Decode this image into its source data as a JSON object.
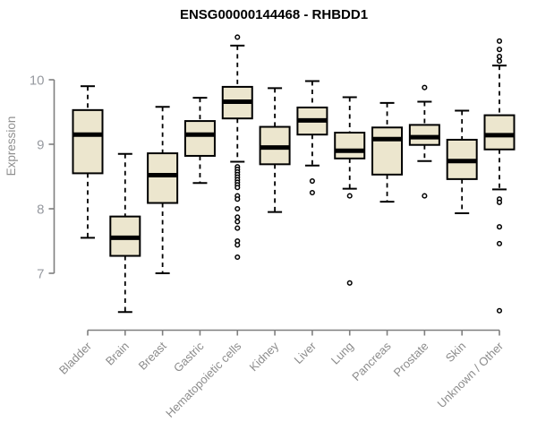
{
  "chart_data": {
    "type": "boxplot",
    "title": "ENSG00000144468 - RHBDD1",
    "ylabel": "Expression",
    "xlabel": "",
    "yticks": [
      7,
      8,
      9,
      10
    ],
    "ylim": [
      6.1,
      10.8
    ],
    "grid": false,
    "legend": "none",
    "categories": [
      "Bladder",
      "Brain",
      "Breast",
      "Gastric",
      "Hematopoietic cells",
      "Kidney",
      "Liver",
      "Lung",
      "Pancreas",
      "Prostate",
      "Skin",
      "Unknown / Other"
    ],
    "series": [
      {
        "name": "Bladder",
        "low": 7.55,
        "q1": 8.55,
        "median": 9.15,
        "q3": 9.53,
        "high": 9.9,
        "outliers": []
      },
      {
        "name": "Brain",
        "low": 6.4,
        "q1": 7.27,
        "median": 7.55,
        "q3": 7.88,
        "high": 8.85,
        "outliers": []
      },
      {
        "name": "Breast",
        "low": 7.0,
        "q1": 8.09,
        "median": 8.52,
        "q3": 8.86,
        "high": 9.58,
        "outliers": []
      },
      {
        "name": "Gastric",
        "low": 8.4,
        "q1": 8.82,
        "median": 9.15,
        "q3": 9.36,
        "high": 9.72,
        "outliers": []
      },
      {
        "name": "Hematopoietic cells",
        "low": 8.73,
        "q1": 9.4,
        "median": 9.66,
        "q3": 9.89,
        "high": 10.53,
        "outliers": [
          10.66,
          8.65,
          8.61,
          8.57,
          8.53,
          8.49,
          8.45,
          8.41,
          8.37,
          8.33,
          8.2,
          8.15,
          8.0,
          7.87,
          7.8,
          7.7,
          7.5,
          7.44,
          7.25
        ]
      },
      {
        "name": "Kidney",
        "low": 7.95,
        "q1": 8.69,
        "median": 8.95,
        "q3": 9.27,
        "high": 9.87,
        "outliers": []
      },
      {
        "name": "Liver",
        "low": 8.67,
        "q1": 9.15,
        "median": 9.37,
        "q3": 9.57,
        "high": 9.98,
        "outliers": [
          8.43,
          8.25
        ]
      },
      {
        "name": "Lung",
        "low": 8.31,
        "q1": 8.78,
        "median": 8.9,
        "q3": 9.18,
        "high": 9.73,
        "outliers": [
          8.2,
          6.85
        ]
      },
      {
        "name": "Pancreas",
        "low": 8.11,
        "q1": 8.53,
        "median": 9.08,
        "q3": 9.26,
        "high": 9.64,
        "outliers": []
      },
      {
        "name": "Prostate",
        "low": 8.74,
        "q1": 8.99,
        "median": 9.11,
        "q3": 9.3,
        "high": 9.66,
        "outliers": [
          9.88,
          8.2
        ]
      },
      {
        "name": "Skin",
        "low": 7.93,
        "q1": 8.46,
        "median": 8.74,
        "q3": 9.07,
        "high": 9.52,
        "outliers": []
      },
      {
        "name": "Unknown / Other",
        "low": 8.3,
        "q1": 8.92,
        "median": 9.14,
        "q3": 9.45,
        "high": 10.22,
        "outliers": [
          10.6,
          10.47,
          10.36,
          10.29,
          8.15,
          8.1,
          7.72,
          7.46,
          6.42
        ]
      }
    ],
    "colors": {
      "box_fill": "#ECE6CE",
      "box_border": "#000000",
      "median": "#000000",
      "whisker": "#000000",
      "outlier_stroke": "#000000",
      "axis": "#7f7f7f",
      "tick_text": "#979aa0",
      "category_text": "#8c8c8c",
      "title_text": "#000000",
      "background": "#ffffff"
    }
  }
}
